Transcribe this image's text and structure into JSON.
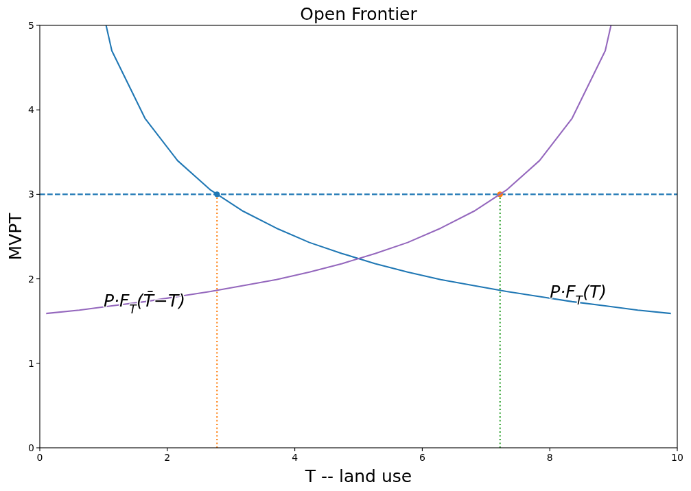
{
  "chart_data": {
    "type": "line",
    "title": "Open Frontier",
    "xlabel": "T -- land use",
    "ylabel": "MVPT",
    "xlim": [
      0,
      10
    ],
    "ylim": [
      0,
      5
    ],
    "xticks": [
      0,
      2,
      4,
      6,
      8,
      10
    ],
    "yticks": [
      0,
      1,
      2,
      3,
      4,
      5
    ],
    "series": [
      {
        "color": "#1f77b4",
        "x": [
          1.04,
          1.13,
          1.65,
          2.16,
          2.68,
          3.19,
          3.71,
          4.23,
          4.74,
          5.26,
          5.77,
          6.29,
          6.81,
          7.32,
          7.84,
          8.35,
          8.87,
          9.38,
          9.9
        ],
        "values": [
          5,
          4.7,
          3.9,
          3.4,
          3.05,
          2.8,
          2.6,
          2.43,
          2.3,
          2.18,
          2.08,
          1.99,
          1.92,
          1.85,
          1.79,
          1.73,
          1.68,
          1.63,
          1.59
        ]
      },
      {
        "color": "#ff7f0e",
        "line_style": "dotted",
        "x": [
          2.78,
          2.78
        ],
        "values": [
          0,
          3
        ]
      },
      {
        "color": "#2ca02c",
        "line_style": "dotted",
        "x": [
          7.22,
          7.22
        ],
        "values": [
          0,
          3
        ]
      },
      {
        "type": "scatter",
        "color": "#1f77b4",
        "marker": "circle",
        "x": [
          2.78
        ],
        "values": [
          3
        ]
      },
      {
        "type": "scatter",
        "color": "#ff7f0e",
        "marker": "circle",
        "x": [
          7.22
        ],
        "values": [
          3
        ]
      },
      {
        "color": "#9467bd",
        "x": [
          0.1,
          0.62,
          1.13,
          1.65,
          2.16,
          2.68,
          3.19,
          3.71,
          4.23,
          4.74,
          5.26,
          5.77,
          6.29,
          6.81,
          7.32,
          7.84,
          8.35,
          8.87,
          8.96
        ],
        "values": [
          1.59,
          1.63,
          1.68,
          1.73,
          1.79,
          1.85,
          1.92,
          1.99,
          2.08,
          2.18,
          2.3,
          2.43,
          2.6,
          2.8,
          3.05,
          3.4,
          3.9,
          4.7,
          5
        ]
      }
    ],
    "ref_lines": [
      {
        "axis": "y",
        "value": 3,
        "color": "#1f77b4",
        "line_style": "dashed"
      }
    ],
    "annotations": [
      {
        "text": "P·F$_{T}$(T̄−T)",
        "x": 1,
        "y": 1.67
      },
      {
        "text": "P·F$_{T}$(T)",
        "x": 8,
        "y": 1.78
      }
    ]
  }
}
